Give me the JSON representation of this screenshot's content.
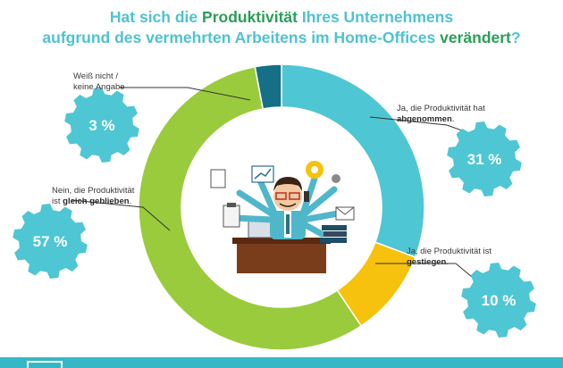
{
  "title": {
    "part1": "Hat sich die ",
    "highlight1": "Produktivität",
    "part2": " Ihres Unternehmens",
    "part3": "aufgrund des vermehrten Arbeitens im Home-Offices ",
    "highlight2": "verändert",
    "part4": "?"
  },
  "labels": {
    "weiss_nicht_line1": "Weiß nicht /",
    "weiss_nicht_line2": "keine Angabe",
    "abgenommen_line1": "Ja, die Produktivität hat",
    "abgenommen_bold": "abgenommen",
    "abgenommen_end": ".",
    "gleich_line1": "Nein, die Produktivität",
    "gleich_prefix": "ist ",
    "gleich_bold": "gleich geblieben",
    "gleich_end": ".",
    "gestiegen_line1": "Ja, die Produktivität ist",
    "gestiegen_bold": "gestiegen",
    "gestiegen_end": "."
  },
  "badges": {
    "weiss_nicht": "3 %",
    "abgenommen": "31 %",
    "gleich": "57 %",
    "gestiegen": "10 %"
  },
  "colors": {
    "title": "#4fc2d0",
    "title_highlight": "#2a9e59",
    "abgenommen": "#4fc6d3",
    "gestiegen": "#f7c20e",
    "gleich": "#9acb3c",
    "weiss_nicht": "#166f86",
    "badge": "#4fc6d3"
  },
  "chart_data": {
    "type": "pie",
    "donut": true,
    "title": "Hat sich die Produktivität Ihres Unternehmens aufgrund des vermehrten Arbeitens im Home-Offices verändert?",
    "categories": [
      "Ja, die Produktivität hat abgenommen.",
      "Ja, die Produktivität ist gestiegen.",
      "Nein, die Produktivität ist gleich geblieben.",
      "Weiß nicht / keine Angabe"
    ],
    "values": [
      31,
      10,
      57,
      3
    ],
    "unit": "%",
    "colors": [
      "#4fc6d3",
      "#f7c20e",
      "#9acb3c",
      "#166f86"
    ]
  }
}
